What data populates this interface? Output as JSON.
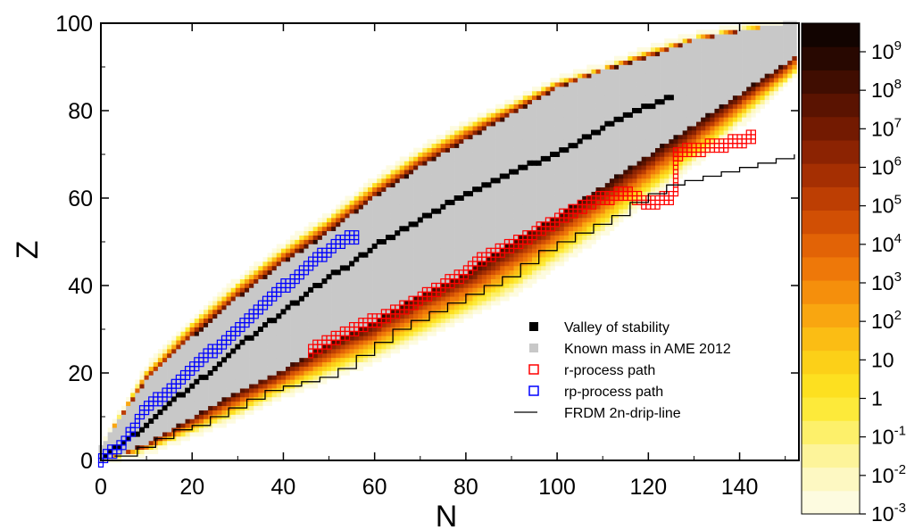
{
  "chart_data": {
    "type": "heatmap",
    "xlabel": "N",
    "ylabel": "Z",
    "xlim": [
      0,
      153
    ],
    "ylim": [
      0,
      100
    ],
    "x_ticks": [
      "0",
      "20",
      "40",
      "60",
      "80",
      "100",
      "120",
      "140"
    ],
    "y_ticks": [
      "0",
      "20",
      "40",
      "60",
      "80",
      "100"
    ],
    "x_tick_values": [
      0,
      20,
      40,
      60,
      80,
      100,
      120,
      140
    ],
    "y_tick_values": [
      0,
      20,
      40,
      60,
      80,
      100
    ],
    "colorbar": {
      "scale": "log",
      "range": [
        0.001,
        1000000000
      ],
      "labels": [
        {
          "base": "10",
          "exp": "9"
        },
        {
          "base": "10",
          "exp": "8"
        },
        {
          "base": "10",
          "exp": "7"
        },
        {
          "base": "10",
          "exp": "6"
        },
        {
          "base": "10",
          "exp": "5"
        },
        {
          "base": "10",
          "exp": "4"
        },
        {
          "base": "10",
          "exp": "3"
        },
        {
          "base": "10",
          "exp": "2"
        },
        {
          "base": "10",
          "exp": ""
        },
        {
          "base": "1",
          "exp": ""
        },
        {
          "base": "10",
          "exp": "-1"
        },
        {
          "base": "10",
          "exp": "-2"
        },
        {
          "base": "10",
          "exp": "-3"
        }
      ],
      "colors": [
        "#fdfbe0",
        "#fdf8c2",
        "#fdf49a",
        "#fdf06a",
        "#fdea3a",
        "#fde020",
        "#fcd018",
        "#fbbd14",
        "#f9a610",
        "#f58f0c",
        "#ee7809",
        "#e26306",
        "#d14f04",
        "#bd3e03",
        "#a52f02",
        "#8c2302",
        "#731a01",
        "#5a1301",
        "#400d01",
        "#280801",
        "#120401"
      ]
    },
    "legend": [
      {
        "label": "Valley of stability",
        "marker": "filled-square",
        "color": "#000000"
      },
      {
        "label": "Known mass in AME 2012",
        "marker": "filled-square",
        "color": "#c8c8c8"
      },
      {
        "label": "r-process path",
        "marker": "open-square",
        "color": "#ff0000"
      },
      {
        "label": "rp-process path",
        "marker": "open-square",
        "color": "#0000ff"
      },
      {
        "label": "FRDM 2n-drip-line",
        "marker": "line",
        "color": "#000000"
      }
    ],
    "legend_position": "lower-right",
    "known_mass_region": {
      "N": [
        0,
        10,
        20,
        30,
        40,
        50,
        60,
        70,
        80,
        90,
        100,
        110,
        120,
        130,
        140,
        150,
        153
      ],
      "Z_min": [
        0,
        4,
        10,
        16,
        21,
        27,
        32,
        38,
        43,
        50,
        56,
        63,
        70,
        77,
        84,
        91,
        94
      ],
      "Z_max": [
        3,
        18,
        28,
        37,
        45,
        52,
        60,
        67,
        73,
        79,
        85,
        89,
        92,
        96,
        98,
        100,
        100
      ]
    },
    "extension_region": {
      "N": [
        0,
        10,
        20,
        30,
        40,
        50,
        60,
        70,
        80,
        90,
        100,
        110,
        120,
        130,
        140,
        150,
        153
      ],
      "Z_min": [
        0,
        2,
        6,
        10,
        15,
        19,
        23,
        28,
        33,
        38,
        45,
        52,
        60,
        68,
        77,
        86,
        89
      ],
      "Z_max": [
        3,
        21,
        32,
        41,
        49,
        56,
        64,
        71,
        77,
        82,
        87,
        90,
        94,
        97,
        99,
        100,
        100
      ]
    },
    "valley_of_stability": {
      "N": [
        1,
        5,
        10,
        15,
        20,
        25,
        30,
        35,
        40,
        45,
        50,
        55,
        60,
        65,
        70,
        75,
        80,
        85,
        90,
        95,
        100,
        105,
        110,
        115,
        120,
        125
      ],
      "Z": [
        1,
        4,
        8,
        13,
        17,
        21,
        26,
        30,
        34,
        38,
        42,
        45,
        49,
        52,
        55,
        58,
        61,
        63,
        66,
        68,
        70,
        73,
        76,
        79,
        81,
        83
      ]
    },
    "r_process_path": {
      "N": [
        46,
        50,
        55,
        60,
        65,
        70,
        75,
        80,
        82,
        85,
        90,
        95,
        100,
        105,
        110,
        115,
        120,
        125,
        126,
        130,
        135,
        140,
        144
      ],
      "Z": [
        26,
        28,
        31,
        33,
        35,
        38,
        41,
        44,
        46,
        48,
        50,
        53,
        56,
        59,
        61,
        62,
        60,
        61,
        71,
        72,
        73,
        74,
        75
      ]
    },
    "rp_process_path": {
      "N": [
        0,
        5,
        8,
        10,
        14,
        18,
        22,
        26,
        30,
        34,
        38,
        42,
        46,
        50,
        54,
        56
      ],
      "Z": [
        1,
        5,
        10,
        13,
        16,
        20,
        24,
        27,
        31,
        35,
        39,
        42,
        46,
        49,
        52,
        52
      ]
    },
    "frdm_2n_drip_line": {
      "N": [
        3,
        8,
        12,
        16,
        20,
        24,
        28,
        32,
        36,
        40,
        44,
        48,
        52,
        56,
        60,
        64,
        68,
        72,
        76,
        80,
        84,
        88,
        92,
        96,
        100,
        104,
        108,
        112,
        116,
        120,
        124,
        128,
        132,
        136,
        140,
        144,
        148,
        152
      ],
      "Z": [
        1,
        3,
        5,
        7,
        8,
        10,
        12,
        14,
        16,
        17,
        18,
        19,
        21,
        24,
        27,
        30,
        32,
        34,
        36,
        38,
        40,
        42,
        45,
        48,
        50,
        52,
        54,
        56,
        59,
        61,
        63,
        64,
        65,
        66,
        67,
        68,
        69,
        70
      ]
    }
  }
}
